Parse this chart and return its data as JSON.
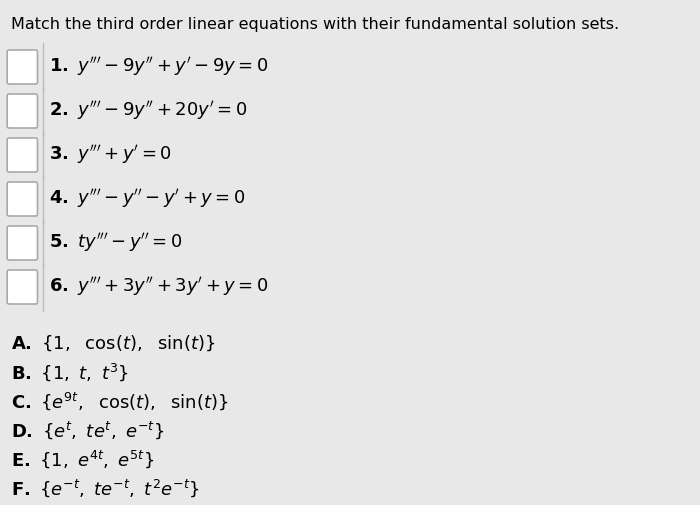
{
  "title": "Match the third order linear equations with their fundamental solution sets.",
  "background_color": "#e8e8e8",
  "checkbox_color": "#ffffff",
  "checkbox_border": "#aaaaaa",
  "text_color": "#000000",
  "title_fontsize": 11.5,
  "eq_fontsize": 13,
  "sol_fontsize": 13
}
